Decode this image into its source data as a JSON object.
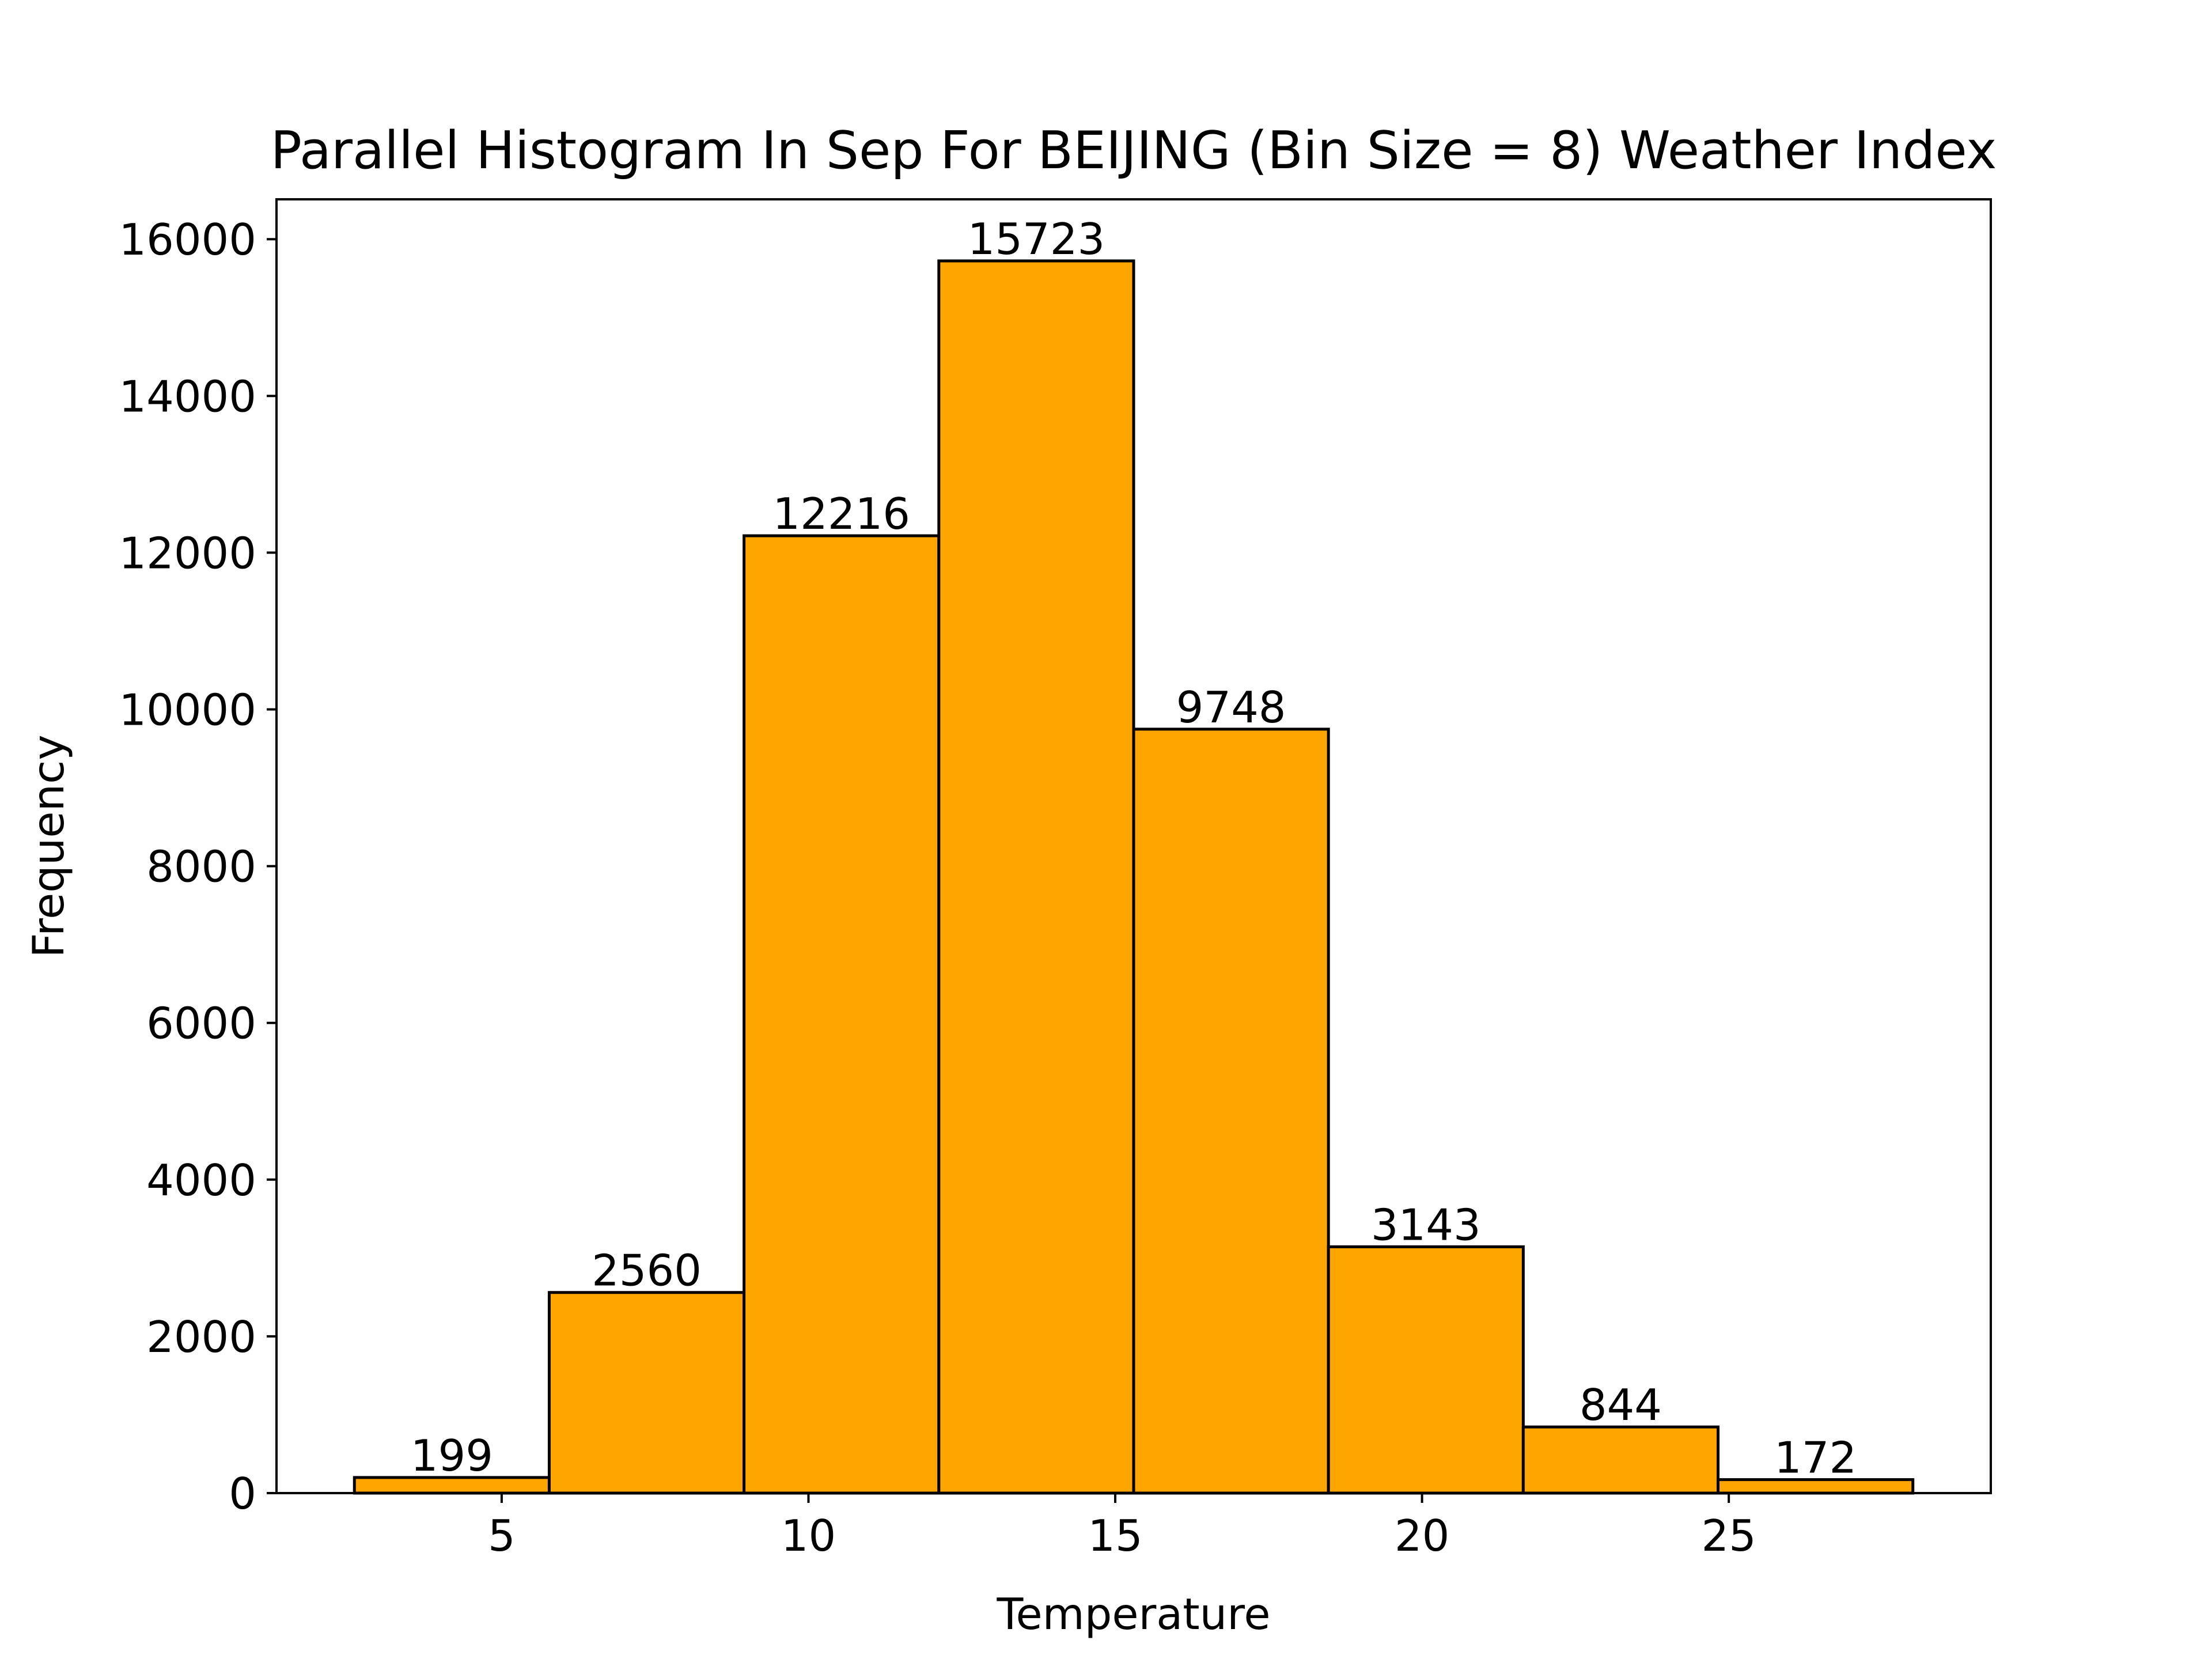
{
  "chart_data": {
    "type": "bar",
    "title": "Parallel Histogram In Sep For BEIJING (Bin Size = 8) Weather Index",
    "xlabel": "Temperature",
    "ylabel": "Frequency",
    "bin_edges": [
      2.6,
      5.775,
      8.95,
      12.125,
      15.3,
      18.475,
      21.65,
      24.825,
      28.0
    ],
    "values": [
      199,
      2560,
      12216,
      15723,
      9748,
      3143,
      844,
      172
    ],
    "xlim": [
      1.33,
      29.27
    ],
    "ylim": [
      0,
      16509
    ],
    "xticks": [
      5,
      10,
      15,
      20,
      25
    ],
    "yticks": [
      0,
      2000,
      4000,
      6000,
      8000,
      10000,
      12000,
      14000,
      16000
    ],
    "bar_color": "#FFA500",
    "edge_color": "#000000",
    "grid": false,
    "legend": false
  }
}
